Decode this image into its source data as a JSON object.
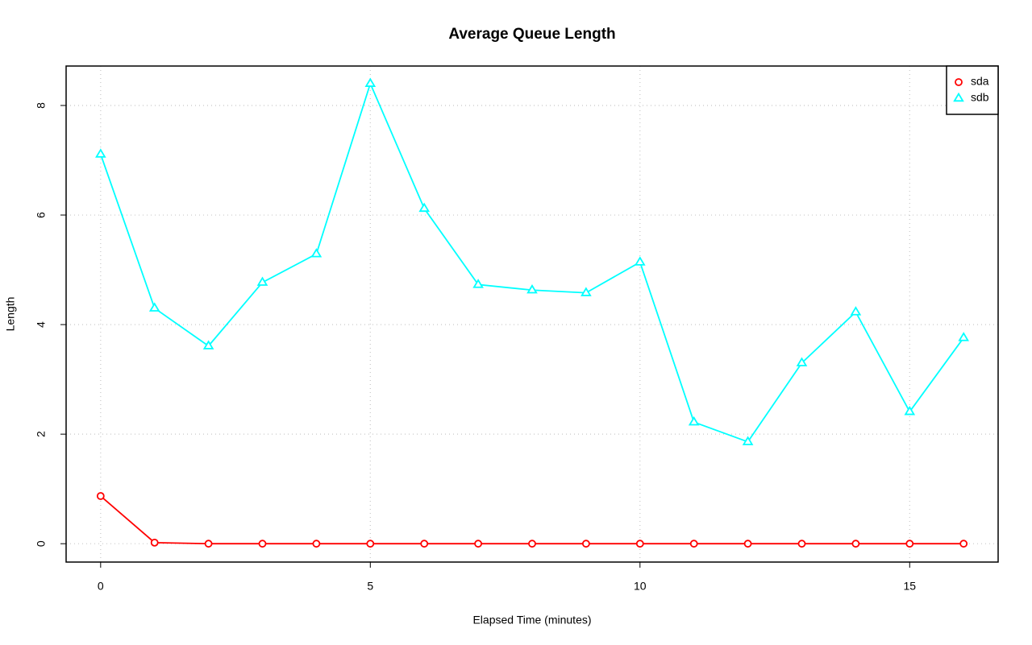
{
  "chart_data": {
    "type": "line",
    "title": "Average Queue Length",
    "x_label": "Elapsed Time (minutes)",
    "y_label": "Length",
    "x": [
      0,
      1,
      2,
      3,
      4,
      5,
      6,
      7,
      8,
      9,
      10,
      11,
      12,
      13,
      14,
      15,
      16
    ],
    "series": [
      {
        "name": "sda",
        "color": "#ff0000",
        "marker": "circle",
        "values": [
          0.87,
          0.02,
          0,
          0,
          0,
          0,
          0,
          0,
          0,
          0,
          0,
          0,
          0,
          0,
          0,
          0,
          0
        ]
      },
      {
        "name": "sdb",
        "color": "#00ffff",
        "marker": "triangle",
        "values": [
          7.11,
          4.3,
          3.61,
          4.77,
          5.29,
          8.4,
          6.12,
          4.73,
          4.63,
          4.58,
          5.14,
          2.22,
          1.86,
          3.3,
          4.23,
          2.41,
          3.76
        ]
      }
    ],
    "xlim": [
      -0.64,
      16.64
    ],
    "ylim": [
      -0.335,
      8.72
    ],
    "xticks": [
      0,
      5,
      10,
      15
    ],
    "yticks": [
      0,
      2,
      4,
      6,
      8
    ],
    "grid": true,
    "legend": "topright"
  }
}
